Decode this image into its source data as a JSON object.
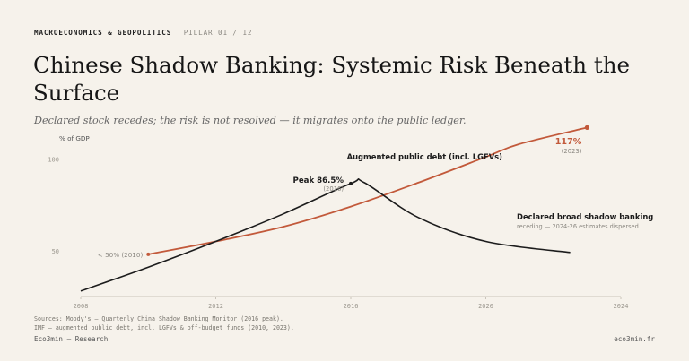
{
  "header": {
    "section": "MACROECONOMICS & GEOPOLITICS",
    "pillar": "PILLAR 01 / 12",
    "title": "Chinese Shadow Banking: Systemic Risk Beneath the Surface",
    "subtitle": "Declared stock recedes; the risk is not resolved — it migrates onto the public ledger."
  },
  "chart_data": {
    "type": "line",
    "ylabel": "% of GDP",
    "xlim": [
      2008,
      2024
    ],
    "ylim": [
      25,
      125
    ],
    "x_ticks": [
      2008,
      2012,
      2016,
      2020,
      2024
    ],
    "y_ticks": [
      50,
      100
    ],
    "grid": false,
    "series": [
      {
        "name": "Declared broad shadow banking",
        "note": "receding — 2024-26 estimates dispersed",
        "color": "#1c1c1c",
        "x": [
          2008,
          2010,
          2012,
          2014,
          2016,
          2016.4,
          2018,
          2020,
          2022.5
        ],
        "y": [
          28,
          41,
          55,
          70,
          86.5,
          87,
          68,
          55,
          49
        ]
      },
      {
        "name": "Augmented public debt (incl. LGFVs)",
        "color": "#c2593a",
        "x": [
          2010,
          2012,
          2014,
          2016,
          2018,
          2020,
          2021,
          2023
        ],
        "y": [
          48,
          55,
          63,
          74,
          87,
          101,
          108,
          117
        ]
      }
    ],
    "annotations": {
      "peak_label": "Peak 86.5%",
      "peak_year": "(2016)",
      "end_label": "117%",
      "end_year": "(2023)",
      "start_label": "< 50% (2010)"
    }
  },
  "footer": {
    "source1": "Sources: Moody's — Quarterly China Shadow Banking Monitor (2016 peak).",
    "source2": "IMF — augmented public debt, incl. LGFVs & off-budget funds (2010, 2023).",
    "brand_left": "Eco3min — Research",
    "brand_right": "eco3min.fr"
  }
}
